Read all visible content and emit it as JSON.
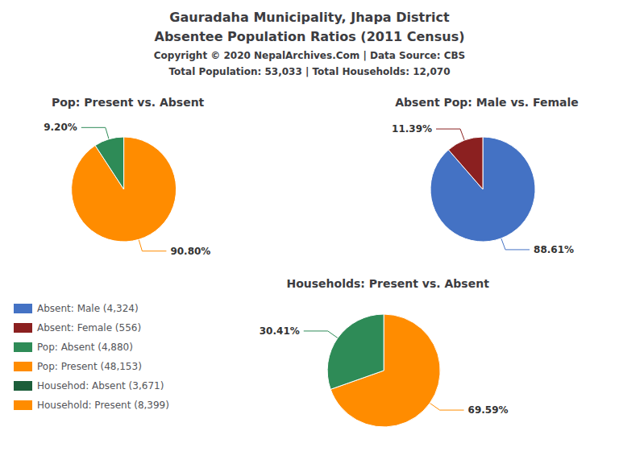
{
  "title": "Gauradaha Municipality, Jhapa District",
  "subtitle": "Absentee Population Ratios (2011 Census)",
  "annotations": [
    "Copyright © 2020 NepalArchives.Com | Data Source: CBS",
    "Total Population: 53,033 | Total Households: 12,070"
  ],
  "legend_items": [
    {
      "label": "Absent: Male (4,324)",
      "color": "#4472C4"
    },
    {
      "label": "Absent: Female (556)",
      "color": "#8B2020"
    },
    {
      "label": "Pop: Absent (4,880)",
      "color": "#2E8B57"
    },
    {
      "label": "Pop: Present (48,153)",
      "color": "#FF8C00"
    },
    {
      "label": "Househod: Absent (3,671)",
      "color": "#1C5E3A"
    },
    {
      "label": "Household: Present (8,399)",
      "color": "#FF8C00"
    }
  ],
  "chart_data": [
    {
      "type": "pie",
      "title": "Pop: Present vs. Absent",
      "categories": [
        "Pop: Present (48,153)",
        "Pop: Absent (4,880)"
      ],
      "values": [
        90.8,
        9.2
      ],
      "value_labels": [
        "90.80%",
        "9.20%"
      ],
      "colors": [
        "#FF8C00",
        "#2E8B57"
      ],
      "data_labels": true
    },
    {
      "type": "pie",
      "title": "Absent Pop: Male vs. Female",
      "categories": [
        "Absent: Male (4,324)",
        "Absent: Female (556)"
      ],
      "values": [
        88.61,
        11.39
      ],
      "value_labels": [
        "88.61%",
        "11.39%"
      ],
      "colors": [
        "#4472C4",
        "#8B2020"
      ],
      "data_labels": true
    },
    {
      "type": "pie",
      "title": "Households: Present vs. Absent",
      "categories": [
        "Household: Present (8,399)",
        "Househod: Absent (3,671)"
      ],
      "values": [
        69.59,
        30.41
      ],
      "value_labels": [
        "69.59%",
        "30.41%"
      ],
      "colors": [
        "#FF8C00",
        "#2E8B57"
      ],
      "data_labels": true
    }
  ]
}
